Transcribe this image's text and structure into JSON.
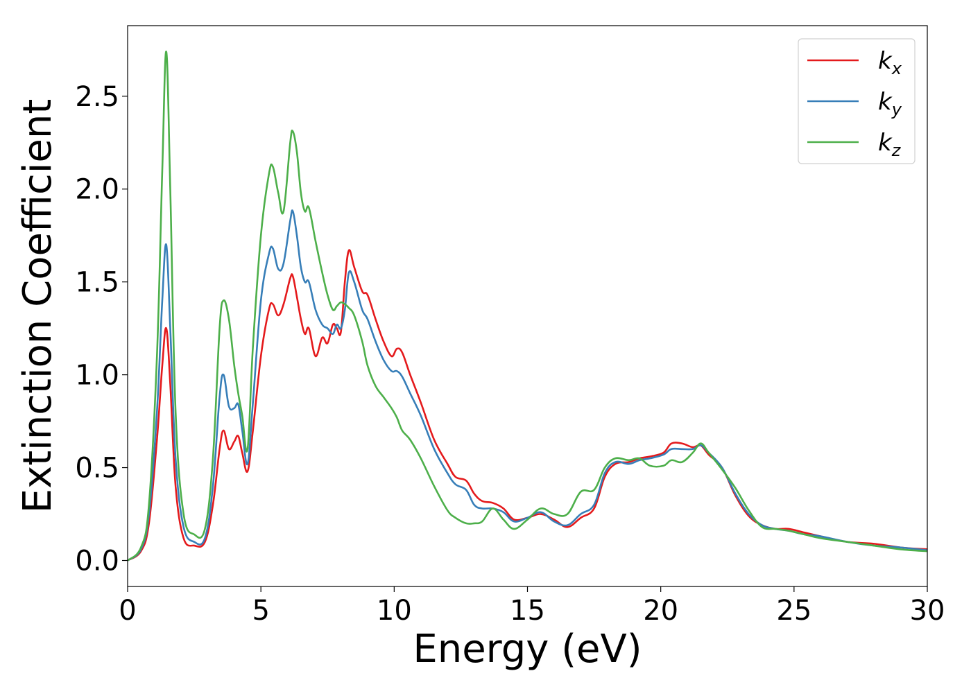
{
  "chart_data": {
    "type": "line",
    "title": "",
    "xlabel": "Energy (eV)",
    "ylabel": "Extinction Coefficient",
    "xlim": [
      0,
      30
    ],
    "ylim": [
      -0.14,
      2.88
    ],
    "xticks": [
      0,
      5,
      10,
      15,
      20,
      25,
      30
    ],
    "xtick_labels": [
      "0",
      "5",
      "10",
      "15",
      "20",
      "25",
      "30"
    ],
    "yticks": [
      0.0,
      0.5,
      1.0,
      1.5,
      2.0,
      2.5
    ],
    "ytick_labels": [
      "0.0",
      "0.5",
      "1.0",
      "1.5",
      "2.0",
      "2.5"
    ],
    "grid": false,
    "legend_position": "top-right",
    "series": [
      {
        "name": "k_x",
        "label_main": "k",
        "label_sub": "x",
        "color": "#e41a1c",
        "points": [
          [
            0,
            0
          ],
          [
            0.5,
            0.05
          ],
          [
            0.8,
            0.2
          ],
          [
            1.1,
            0.65
          ],
          [
            1.3,
            1.05
          ],
          [
            1.45,
            1.25
          ],
          [
            1.6,
            0.95
          ],
          [
            1.8,
            0.4
          ],
          [
            2.1,
            0.12
          ],
          [
            2.5,
            0.08
          ],
          [
            2.9,
            0.1
          ],
          [
            3.2,
            0.3
          ],
          [
            3.45,
            0.6
          ],
          [
            3.6,
            0.7
          ],
          [
            3.8,
            0.6
          ],
          [
            4.0,
            0.64
          ],
          [
            4.15,
            0.67
          ],
          [
            4.3,
            0.58
          ],
          [
            4.5,
            0.48
          ],
          [
            4.7,
            0.7
          ],
          [
            5.0,
            1.1
          ],
          [
            5.3,
            1.35
          ],
          [
            5.45,
            1.38
          ],
          [
            5.65,
            1.32
          ],
          [
            5.85,
            1.38
          ],
          [
            6.1,
            1.52
          ],
          [
            6.2,
            1.53
          ],
          [
            6.35,
            1.42
          ],
          [
            6.5,
            1.3
          ],
          [
            6.65,
            1.22
          ],
          [
            6.8,
            1.25
          ],
          [
            7.05,
            1.1
          ],
          [
            7.3,
            1.2
          ],
          [
            7.5,
            1.17
          ],
          [
            7.7,
            1.27
          ],
          [
            7.85,
            1.25
          ],
          [
            8.0,
            1.23
          ],
          [
            8.15,
            1.5
          ],
          [
            8.3,
            1.67
          ],
          [
            8.5,
            1.58
          ],
          [
            8.8,
            1.45
          ],
          [
            9.0,
            1.43
          ],
          [
            9.3,
            1.3
          ],
          [
            9.6,
            1.18
          ],
          [
            9.9,
            1.1
          ],
          [
            10.1,
            1.14
          ],
          [
            10.3,
            1.12
          ],
          [
            10.6,
            1.0
          ],
          [
            11.0,
            0.85
          ],
          [
            11.5,
            0.65
          ],
          [
            12.0,
            0.52
          ],
          [
            12.3,
            0.45
          ],
          [
            12.7,
            0.43
          ],
          [
            13.0,
            0.36
          ],
          [
            13.3,
            0.32
          ],
          [
            13.7,
            0.31
          ],
          [
            14.1,
            0.28
          ],
          [
            14.5,
            0.22
          ],
          [
            15.0,
            0.23
          ],
          [
            15.5,
            0.25
          ],
          [
            16.0,
            0.22
          ],
          [
            16.5,
            0.18
          ],
          [
            17.0,
            0.23
          ],
          [
            17.5,
            0.28
          ],
          [
            17.9,
            0.45
          ],
          [
            18.3,
            0.52
          ],
          [
            18.8,
            0.53
          ],
          [
            19.2,
            0.55
          ],
          [
            19.6,
            0.56
          ],
          [
            20.1,
            0.58
          ],
          [
            20.4,
            0.63
          ],
          [
            20.8,
            0.63
          ],
          [
            21.2,
            0.61
          ],
          [
            21.5,
            0.62
          ],
          [
            21.8,
            0.57
          ],
          [
            22.3,
            0.5
          ],
          [
            22.8,
            0.35
          ],
          [
            23.3,
            0.24
          ],
          [
            23.8,
            0.19
          ],
          [
            24.3,
            0.17
          ],
          [
            24.8,
            0.17
          ],
          [
            25.4,
            0.15
          ],
          [
            26,
            0.13
          ],
          [
            27,
            0.1
          ],
          [
            28,
            0.09
          ],
          [
            29,
            0.07
          ],
          [
            30,
            0.06
          ]
        ]
      },
      {
        "name": "k_y",
        "label_main": "k",
        "label_sub": "y",
        "color": "#377eb8",
        "points": [
          [
            0,
            0
          ],
          [
            0.5,
            0.06
          ],
          [
            0.8,
            0.25
          ],
          [
            1.1,
            0.8
          ],
          [
            1.3,
            1.4
          ],
          [
            1.45,
            1.7
          ],
          [
            1.6,
            1.25
          ],
          [
            1.8,
            0.55
          ],
          [
            2.1,
            0.18
          ],
          [
            2.5,
            0.1
          ],
          [
            2.9,
            0.12
          ],
          [
            3.2,
            0.4
          ],
          [
            3.45,
            0.88
          ],
          [
            3.6,
            1.0
          ],
          [
            3.8,
            0.83
          ],
          [
            4.0,
            0.82
          ],
          [
            4.15,
            0.84
          ],
          [
            4.3,
            0.7
          ],
          [
            4.5,
            0.52
          ],
          [
            4.7,
            0.85
          ],
          [
            5.0,
            1.4
          ],
          [
            5.3,
            1.65
          ],
          [
            5.45,
            1.68
          ],
          [
            5.65,
            1.57
          ],
          [
            5.85,
            1.6
          ],
          [
            6.1,
            1.83
          ],
          [
            6.2,
            1.88
          ],
          [
            6.35,
            1.75
          ],
          [
            6.5,
            1.58
          ],
          [
            6.65,
            1.5
          ],
          [
            6.8,
            1.5
          ],
          [
            7.05,
            1.35
          ],
          [
            7.3,
            1.27
          ],
          [
            7.5,
            1.25
          ],
          [
            7.7,
            1.22
          ],
          [
            7.85,
            1.27
          ],
          [
            8.0,
            1.25
          ],
          [
            8.15,
            1.35
          ],
          [
            8.3,
            1.55
          ],
          [
            8.5,
            1.5
          ],
          [
            8.8,
            1.35
          ],
          [
            9.0,
            1.3
          ],
          [
            9.3,
            1.18
          ],
          [
            9.6,
            1.08
          ],
          [
            9.9,
            1.02
          ],
          [
            10.1,
            1.02
          ],
          [
            10.3,
            0.99
          ],
          [
            10.6,
            0.9
          ],
          [
            11.0,
            0.78
          ],
          [
            11.5,
            0.6
          ],
          [
            12.0,
            0.47
          ],
          [
            12.3,
            0.41
          ],
          [
            12.7,
            0.38
          ],
          [
            13.0,
            0.3
          ],
          [
            13.3,
            0.28
          ],
          [
            13.7,
            0.28
          ],
          [
            14.1,
            0.26
          ],
          [
            14.5,
            0.21
          ],
          [
            15.0,
            0.23
          ],
          [
            15.5,
            0.26
          ],
          [
            16.0,
            0.21
          ],
          [
            16.5,
            0.19
          ],
          [
            17.0,
            0.25
          ],
          [
            17.5,
            0.3
          ],
          [
            17.9,
            0.47
          ],
          [
            18.3,
            0.53
          ],
          [
            18.8,
            0.52
          ],
          [
            19.2,
            0.54
          ],
          [
            19.6,
            0.55
          ],
          [
            20.1,
            0.57
          ],
          [
            20.4,
            0.6
          ],
          [
            20.8,
            0.6
          ],
          [
            21.2,
            0.6
          ],
          [
            21.5,
            0.62
          ],
          [
            21.8,
            0.58
          ],
          [
            22.3,
            0.5
          ],
          [
            22.8,
            0.36
          ],
          [
            23.3,
            0.25
          ],
          [
            23.8,
            0.19
          ],
          [
            24.3,
            0.17
          ],
          [
            24.8,
            0.16
          ],
          [
            25.4,
            0.14
          ],
          [
            26,
            0.13
          ],
          [
            27,
            0.1
          ],
          [
            28,
            0.08
          ],
          [
            29,
            0.07
          ],
          [
            30,
            0.055
          ]
        ]
      },
      {
        "name": "k_z",
        "label_main": "k",
        "label_sub": "z",
        "color": "#4daf4a",
        "points": [
          [
            0,
            0
          ],
          [
            0.5,
            0.07
          ],
          [
            0.8,
            0.3
          ],
          [
            1.1,
            1.1
          ],
          [
            1.3,
            2.1
          ],
          [
            1.45,
            2.74
          ],
          [
            1.6,
            2.0
          ],
          [
            1.8,
            0.8
          ],
          [
            2.1,
            0.25
          ],
          [
            2.5,
            0.14
          ],
          [
            2.9,
            0.17
          ],
          [
            3.2,
            0.55
          ],
          [
            3.45,
            1.25
          ],
          [
            3.6,
            1.4
          ],
          [
            3.8,
            1.3
          ],
          [
            4.0,
            1.05
          ],
          [
            4.15,
            0.9
          ],
          [
            4.3,
            0.78
          ],
          [
            4.5,
            0.6
          ],
          [
            4.7,
            1.15
          ],
          [
            5.0,
            1.75
          ],
          [
            5.3,
            2.08
          ],
          [
            5.45,
            2.12
          ],
          [
            5.65,
            1.98
          ],
          [
            5.85,
            1.88
          ],
          [
            6.1,
            2.25
          ],
          [
            6.2,
            2.31
          ],
          [
            6.35,
            2.2
          ],
          [
            6.5,
            1.98
          ],
          [
            6.65,
            1.88
          ],
          [
            6.8,
            1.9
          ],
          [
            7.05,
            1.72
          ],
          [
            7.3,
            1.55
          ],
          [
            7.5,
            1.43
          ],
          [
            7.7,
            1.35
          ],
          [
            7.85,
            1.37
          ],
          [
            8.0,
            1.39
          ],
          [
            8.15,
            1.38
          ],
          [
            8.3,
            1.36
          ],
          [
            8.5,
            1.32
          ],
          [
            8.8,
            1.18
          ],
          [
            9.0,
            1.05
          ],
          [
            9.3,
            0.94
          ],
          [
            9.6,
            0.88
          ],
          [
            9.9,
            0.82
          ],
          [
            10.1,
            0.77
          ],
          [
            10.3,
            0.7
          ],
          [
            10.6,
            0.65
          ],
          [
            11.0,
            0.55
          ],
          [
            11.5,
            0.4
          ],
          [
            12.0,
            0.27
          ],
          [
            12.3,
            0.23
          ],
          [
            12.7,
            0.2
          ],
          [
            13.0,
            0.2
          ],
          [
            13.3,
            0.21
          ],
          [
            13.7,
            0.28
          ],
          [
            14.1,
            0.22
          ],
          [
            14.5,
            0.17
          ],
          [
            15.0,
            0.22
          ],
          [
            15.5,
            0.28
          ],
          [
            16.0,
            0.25
          ],
          [
            16.5,
            0.25
          ],
          [
            17.0,
            0.37
          ],
          [
            17.5,
            0.38
          ],
          [
            17.9,
            0.5
          ],
          [
            18.3,
            0.55
          ],
          [
            18.8,
            0.54
          ],
          [
            19.2,
            0.55
          ],
          [
            19.6,
            0.51
          ],
          [
            20.1,
            0.51
          ],
          [
            20.4,
            0.54
          ],
          [
            20.8,
            0.53
          ],
          [
            21.2,
            0.58
          ],
          [
            21.5,
            0.63
          ],
          [
            21.8,
            0.58
          ],
          [
            22.3,
            0.49
          ],
          [
            22.8,
            0.39
          ],
          [
            23.3,
            0.27
          ],
          [
            23.8,
            0.18
          ],
          [
            24.3,
            0.17
          ],
          [
            24.8,
            0.16
          ],
          [
            25.4,
            0.14
          ],
          [
            26,
            0.12
          ],
          [
            27,
            0.1
          ],
          [
            28,
            0.08
          ],
          [
            29,
            0.06
          ],
          [
            30,
            0.05
          ]
        ]
      }
    ]
  }
}
